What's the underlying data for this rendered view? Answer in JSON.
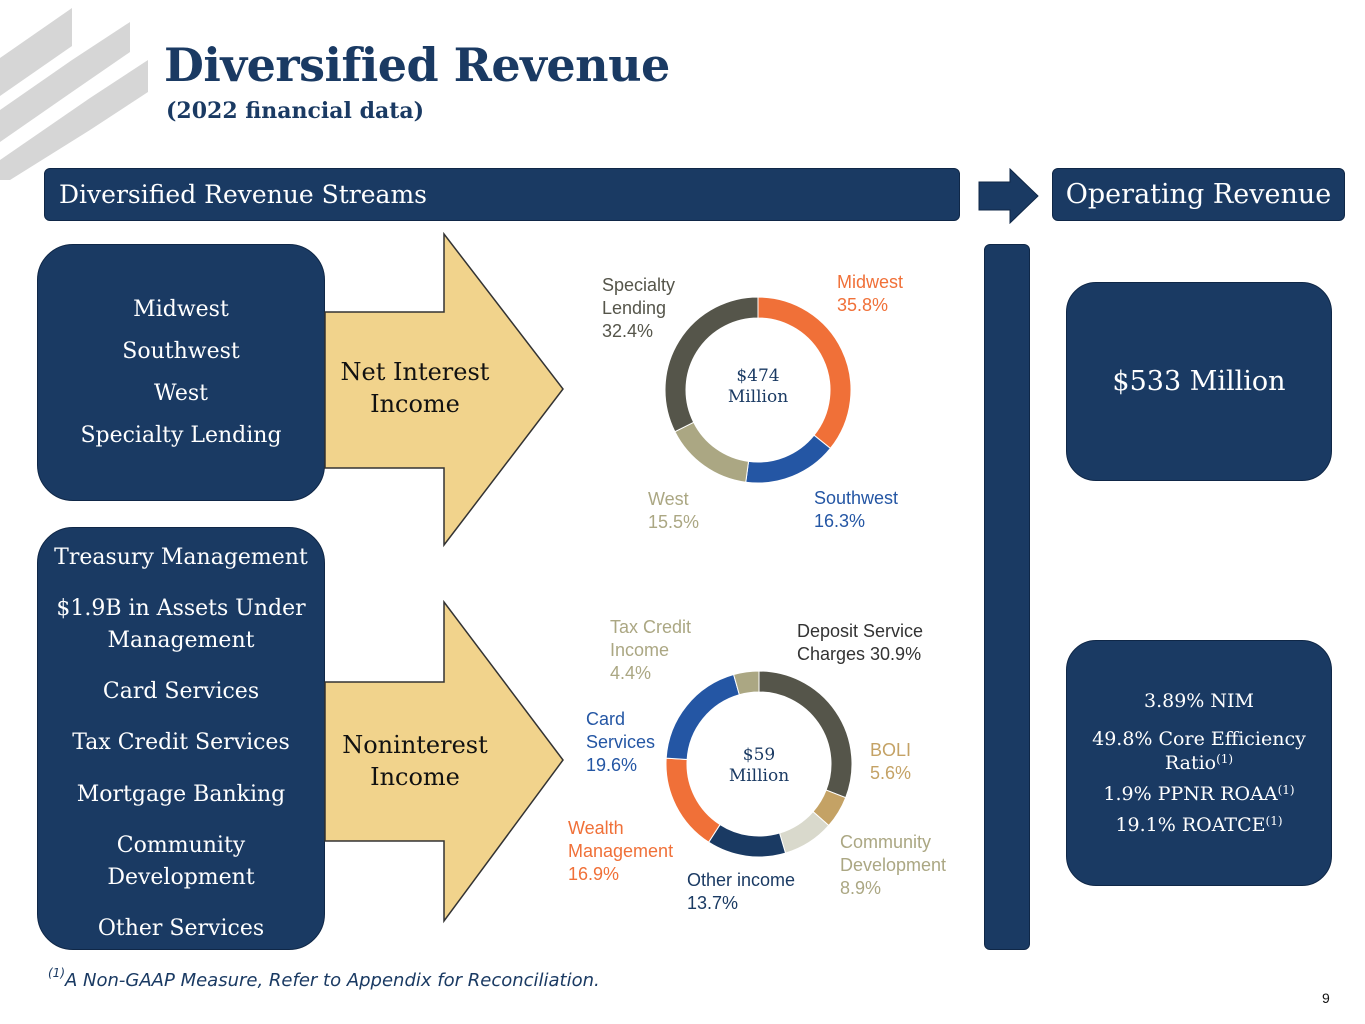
{
  "header": {
    "title": "Diversified Revenue",
    "subtitle": "(2022 financial data)"
  },
  "bars": {
    "left": "Diversified Revenue Streams",
    "right": "Operating Revenue"
  },
  "segments_box": {
    "items": [
      "Midwest",
      "Southwest",
      "West",
      "Specialty Lending"
    ]
  },
  "services_box": {
    "items": [
      "Treasury Management",
      "$1.9B in Assets Under Management",
      "Card Services",
      "Tax Credit Services",
      "Mortgage Banking",
      "Community Development",
      "Other Services"
    ]
  },
  "arrows": {
    "nii": [
      "Net Interest",
      "Income"
    ],
    "nonii": [
      "Noninterest",
      "Income"
    ]
  },
  "chart_data": [
    {
      "type": "pie",
      "center_label": [
        "$474",
        "Million"
      ],
      "slices": [
        {
          "label": [
            "Midwest",
            "35.8%"
          ],
          "value": 35.8,
          "color": "#f07038"
        },
        {
          "label": [
            "Southwest",
            "16.3%"
          ],
          "value": 16.3,
          "color": "#2456a4"
        },
        {
          "label": [
            "West",
            "15.5%"
          ],
          "value": 15.5,
          "color": "#aba783"
        },
        {
          "label": [
            "Specialty",
            "Lending",
            "32.4%"
          ],
          "value": 32.4,
          "color": "#55554a"
        }
      ]
    },
    {
      "type": "pie",
      "center_label": [
        "$59",
        "Million"
      ],
      "slices": [
        {
          "label": [
            "Deposit Service",
            "Charges 30.9%"
          ],
          "value": 30.9,
          "color": "#55554a"
        },
        {
          "label": [
            "BOLI",
            "5.6%"
          ],
          "value": 5.6,
          "color": "#c4a265"
        },
        {
          "label": [
            "Community",
            "Development",
            "8.9%"
          ],
          "value": 8.9,
          "color": "#d9d9cc"
        },
        {
          "label": [
            "Other income",
            "13.7%"
          ],
          "value": 13.7,
          "color": "#1a3a63"
        },
        {
          "label": [
            "Wealth",
            "Management",
            "16.9%"
          ],
          "value": 16.9,
          "color": "#f07038"
        },
        {
          "label": [
            "Card",
            "Services",
            "19.6%"
          ],
          "value": 19.6,
          "color": "#2456a4"
        },
        {
          "label": [
            "Tax Credit",
            "Income",
            "4.4%"
          ],
          "value": 4.4,
          "color": "#aba783"
        }
      ]
    }
  ],
  "label_colors": {
    "chart1": [
      "#f07038",
      "#2456a4",
      "#aba783",
      "#55554a"
    ],
    "chart2": [
      "#333333",
      "#c4a265",
      "#aba783",
      "#1a3a63",
      "#f07038",
      "#2456a4",
      "#aba783"
    ]
  },
  "operating_revenue": {
    "value": "$533 Million"
  },
  "metrics": {
    "nim": "3.89% NIM",
    "efficiency_a": "49.8% Core Efficiency",
    "efficiency_b": "Ratio",
    "ppnr": "1.9% PPNR ROAA",
    "roatce": "19.1% ROATCE",
    "note_marker": "(1)"
  },
  "footnote": {
    "marker": "(1)",
    "text": "A Non-GAAP Measure, Refer to Appendix for Reconciliation."
  },
  "page_number": "9",
  "colors": {
    "navy": "#1a3a63",
    "arrow_fill": "#f1d38c"
  }
}
